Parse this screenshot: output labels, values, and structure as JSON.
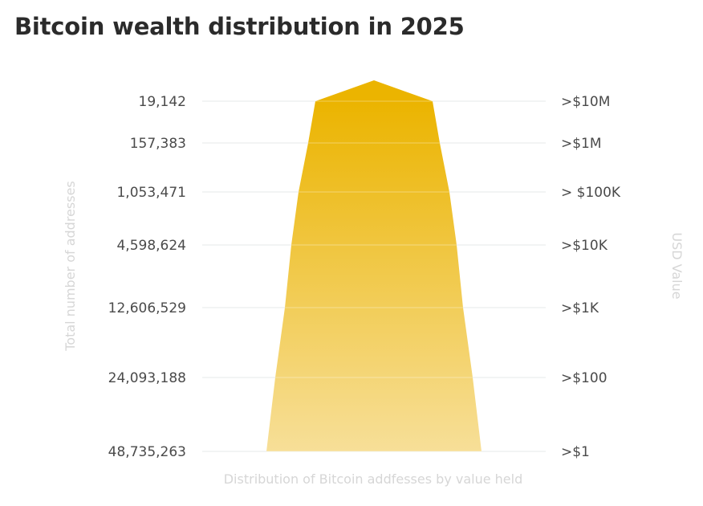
{
  "chart_data": {
    "type": "area",
    "title": "Bitcoin wealth distribution in 2025",
    "xlabel": "Distribution of Bitcoin addfesses by value held",
    "ylabel_left": "Total number of addresses",
    "ylabel_right": "USD Value",
    "grid": true,
    "categories": [
      ">$10M",
      ">$1M",
      "> $100K",
      ">$10K",
      ">$1K",
      ">$100",
      ">$1"
    ],
    "values": [
      19142,
      157383,
      1053471,
      4598624,
      12606529,
      24093188,
      48735263
    ],
    "value_labels": [
      "19,142",
      "157,383",
      "1,053,471",
      "4,598,624",
      "12,606,529",
      "24,093,188",
      "48,735,263"
    ],
    "colors": {
      "top": "#ebb400",
      "bottom": "#f7df98",
      "grid": "#e4e8ea"
    }
  }
}
